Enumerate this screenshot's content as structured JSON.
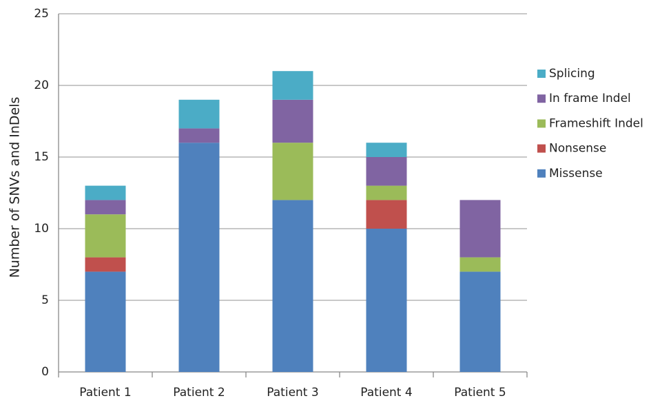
{
  "chart_data": {
    "type": "stacked_bar",
    "y_label": "Number of SNVs and InDels",
    "categories": [
      "Patient 1",
      "Patient 2",
      "Patient 3",
      "Patient 4",
      "Patient 5"
    ],
    "series": [
      {
        "name": "Missense",
        "color": "#4f81bd",
        "values": [
          7,
          16,
          12,
          10,
          7
        ]
      },
      {
        "name": "Nonsense",
        "color": "#c0504d",
        "values": [
          1,
          0,
          0,
          2,
          0
        ]
      },
      {
        "name": "Frameshift Indel",
        "color": "#9bbb59",
        "values": [
          3,
          0,
          4,
          1,
          1
        ]
      },
      {
        "name": "In frame Indel",
        "color": "#8064a2",
        "values": [
          1,
          1,
          3,
          2,
          4
        ]
      },
      {
        "name": "Splicing",
        "color": "#4bacc6",
        "values": [
          1,
          2,
          2,
          1,
          0
        ]
      }
    ],
    "ylim": [
      0,
      25
    ],
    "yticks": [
      0,
      5,
      10,
      15,
      20,
      25
    ],
    "grid": true,
    "legend": "right"
  }
}
